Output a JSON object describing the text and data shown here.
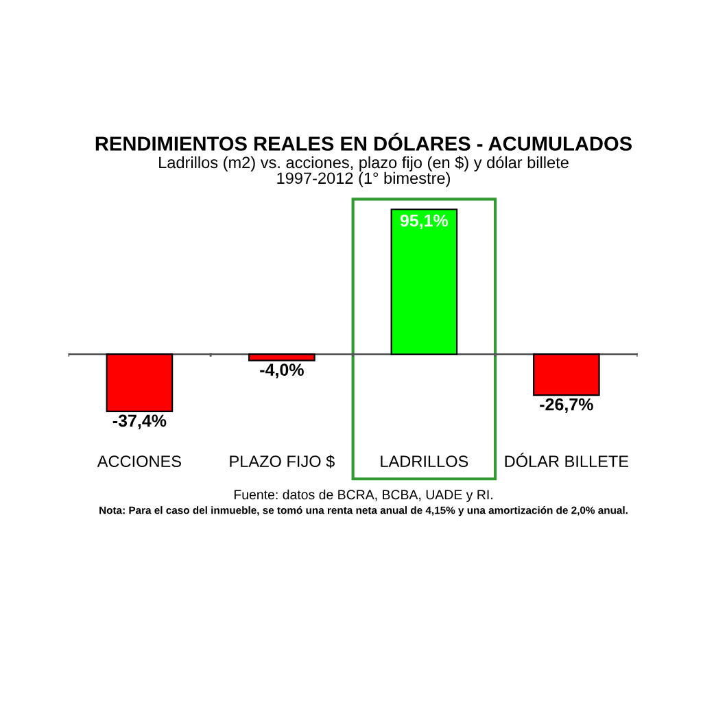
{
  "chart_data": {
    "type": "bar",
    "title": "RENDIMIENTOS REALES EN DÓLARES - ACUMULADOS",
    "subtitle": "Ladrillos (m2) vs. acciones, plazo fijo (en $) y dólar billete\n1997-2012 (1° bimestre)",
    "categories": [
      "ACCIONES",
      "PLAZO FIJO $",
      "LADRILLOS",
      "DÓLAR BILLETE"
    ],
    "values": [
      -37.4,
      -4.0,
      95.1,
      -26.7
    ],
    "colors": [
      "#ff0000",
      "#ff0000",
      "#00ff00",
      "#ff0000"
    ],
    "value_labels": [
      "-37,4%",
      "-4,0%",
      "95,1%",
      "-26,7%"
    ],
    "annotations": [
      "Fuente: datos de BCRA, BCBA, UADE y RI.",
      "Nota: Para el caso del inmueble, se tomó una renta neta anual de 4,15% y una amortización de 2,0% anual."
    ],
    "grid": false,
    "legend": false
  }
}
